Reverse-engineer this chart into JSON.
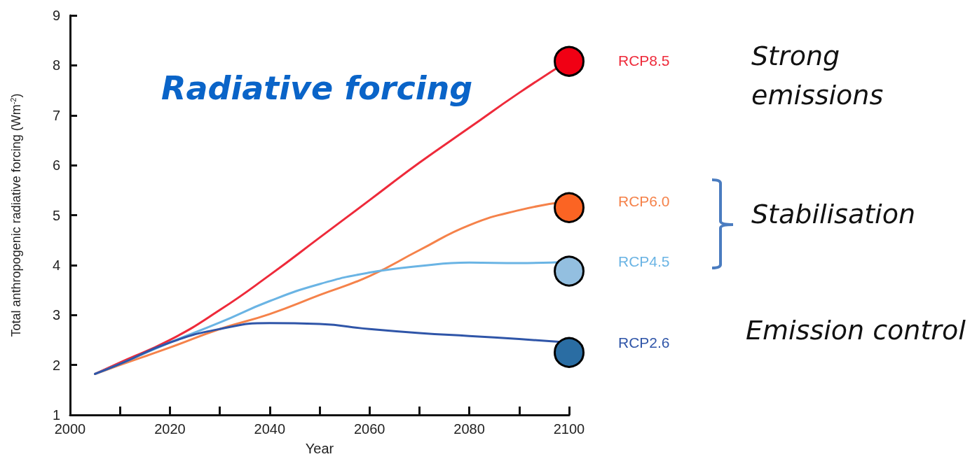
{
  "chart_data": {
    "type": "line",
    "title": "Radiative forcing",
    "xlabel": "Year",
    "ylabel": "Total anthropogenic radiative forcing (Wm$^{-2}$)",
    "x": [
      2005,
      2010,
      2020,
      2030,
      2040,
      2050,
      2060,
      2070,
      2080,
      2090,
      2100
    ],
    "series": [
      {
        "name": "RCP8.5",
        "color": "#ee2a3a",
        "values": [
          1.82,
          2.05,
          2.5,
          3.1,
          3.8,
          4.55,
          5.3,
          6.05,
          6.75,
          7.45,
          8.1
        ]
      },
      {
        "name": "RCP6.0",
        "color": "#f5824a",
        "values": [
          1.82,
          2.0,
          2.35,
          2.72,
          3.02,
          3.4,
          3.78,
          4.3,
          4.8,
          5.1,
          5.28
        ]
      },
      {
        "name": "RCP4.5",
        "color": "#6ab4e4",
        "values": [
          1.82,
          2.02,
          2.45,
          2.85,
          3.28,
          3.62,
          3.85,
          3.98,
          4.05,
          4.04,
          4.07
        ]
      },
      {
        "name": "RCP2.6",
        "color": "#2f55a8",
        "values": [
          1.82,
          2.02,
          2.45,
          2.72,
          2.84,
          2.82,
          2.72,
          2.64,
          2.58,
          2.52,
          2.45
        ]
      },
      {
        "type": "scatter",
        "color": "#f00014",
        "values": [
          null,
          null,
          null,
          null,
          null,
          null,
          null,
          null,
          null,
          null,
          8.08
        ]
      },
      {
        "type": "scatter",
        "color": "#fb6423",
        "values": [
          null,
          null,
          null,
          null,
          null,
          null,
          null,
          null,
          null,
          null,
          5.15
        ]
      },
      {
        "type": "scatter",
        "color": "#93bfe0",
        "values": [
          null,
          null,
          null,
          null,
          null,
          null,
          null,
          null,
          null,
          null,
          3.88
        ]
      },
      {
        "type": "scatter",
        "color": "#2a6da3",
        "values": [
          null,
          null,
          null,
          null,
          null,
          null,
          null,
          null,
          null,
          null,
          2.25
        ]
      }
    ],
    "xlim": [
      2000,
      2100
    ],
    "xticks": [
      2000,
      {
        "value": 2010,
        "label": null
      },
      2020,
      {
        "value": 2030,
        "label": null
      },
      2040,
      {
        "value": 2050,
        "label": null
      },
      2060,
      {
        "value": 2070,
        "label": null
      },
      2080,
      {
        "value": 2090,
        "label": null
      },
      2100
    ],
    "ylim": [
      1,
      9
    ],
    "yticks": [
      1,
      2,
      3,
      4,
      5,
      6,
      7,
      8,
      9
    ],
    "grid": false,
    "line_style": "solid",
    "annotations": [
      "Strong\nemissions",
      "Stabilisation",
      "Emission control"
    ]
  }
}
